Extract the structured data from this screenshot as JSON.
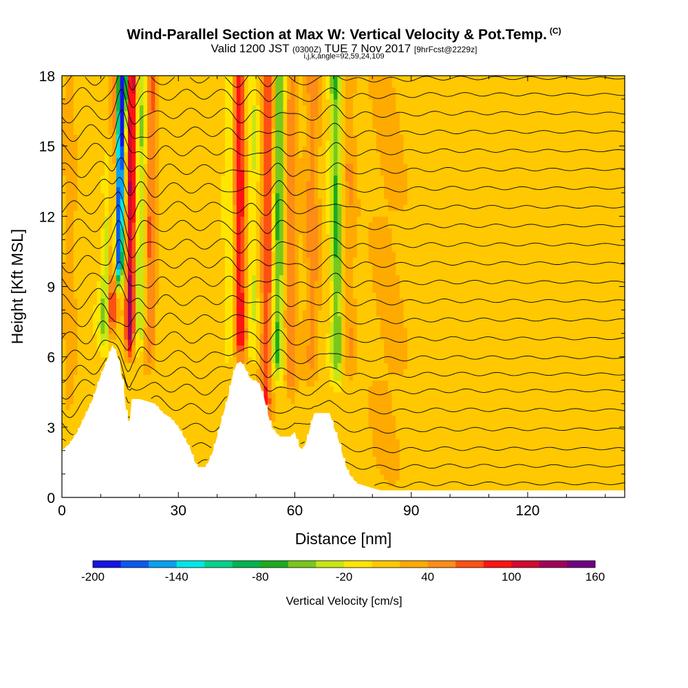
{
  "header": {
    "title": "Wind-Parallel Section at Max W: Vertical Velocity & Pot.Temp.",
    "title_tag": "(C)",
    "valid_prefix": "Valid 1200 JST",
    "valid_zulu": "(0300Z)",
    "valid_date": "TUE 7 Nov 2017",
    "forecast": "[9hrFcst@2229z]",
    "indices": "i,j,k,angle=92,59,24,109"
  },
  "chart_data": {
    "type": "heatmap",
    "xlabel": "Distance [nm]",
    "ylabel": "Height [Kft MSL]",
    "xlim": [
      0,
      145
    ],
    "ylim": [
      0,
      18
    ],
    "x_ticks": [
      "0",
      "30",
      "60",
      "90",
      "120"
    ],
    "x_tick_values": [
      0,
      30,
      60,
      90,
      120
    ],
    "x_minor_step": 10,
    "y_ticks": [
      "0",
      "3",
      "6",
      "9",
      "12",
      "15",
      "18"
    ],
    "y_tick_values": [
      0,
      3,
      6,
      9,
      12,
      15,
      18
    ],
    "y_minor_step": 1,
    "terrain_profile": {
      "x": [
        0,
        2,
        4,
        6,
        8,
        10,
        11,
        12,
        13,
        14,
        15,
        16,
        17,
        17.5,
        18,
        19,
        20,
        24,
        26,
        28,
        30,
        32,
        33,
        34,
        35,
        37,
        38,
        39,
        40,
        41,
        42,
        43,
        44,
        45,
        46,
        47,
        48,
        49,
        50,
        51,
        52,
        53,
        54,
        55,
        56,
        57,
        58,
        59,
        60,
        61,
        62,
        63,
        64,
        65,
        66,
        67,
        68,
        69,
        70,
        71,
        72,
        73,
        74,
        75,
        76,
        78,
        80,
        82,
        84,
        86,
        88,
        90,
        92,
        95,
        100,
        110,
        120,
        130,
        140,
        145
      ],
      "height": [
        2.0,
        2.3,
        2.8,
        3.5,
        4.2,
        5.2,
        5.6,
        6.0,
        6.5,
        6.2,
        5.6,
        4.5,
        3.0,
        3.3,
        4.2,
        4.2,
        4.2,
        4.0,
        3.6,
        3.4,
        3.0,
        2.4,
        2.1,
        1.6,
        1.3,
        1.3,
        1.6,
        2.0,
        2.6,
        3.2,
        3.8,
        4.4,
        5.2,
        5.7,
        5.8,
        5.6,
        5.2,
        5.0,
        5.0,
        4.8,
        4.3,
        3.6,
        3.0,
        2.8,
        2.6,
        2.6,
        2.6,
        2.6,
        2.8,
        2.2,
        2.0,
        2.4,
        3.0,
        3.6,
        3.6,
        3.6,
        3.6,
        3.6,
        3.0,
        2.6,
        2.0,
        1.4,
        1.0,
        0.8,
        0.6,
        0.5,
        0.4,
        0.3,
        0.3,
        0.3,
        0.3,
        0.3,
        0.3,
        0.3,
        0.3,
        0.3,
        0.3,
        0.3,
        0.3,
        0.3
      ]
    },
    "vertical_velocity_features": [
      {
        "x_base": 12.5,
        "z_base": 6.8,
        "slant": 0.15,
        "amp": 130,
        "width": 1.2
      },
      {
        "x_base": 11.0,
        "z_base": 6.5,
        "slant": 0.35,
        "amp": -90,
        "width": 1.6
      },
      {
        "x_base": 14.5,
        "z_base": 9.0,
        "slant": 0.1,
        "amp": -200,
        "width": 1.1
      },
      {
        "x_base": 17.5,
        "z_base": 6.0,
        "slant": 0.05,
        "amp": 120,
        "width": 1.2
      },
      {
        "x_base": 20.0,
        "z_base": 6.0,
        "slant": 0.05,
        "amp": -50,
        "width": 1.5
      },
      {
        "x_base": 22.5,
        "z_base": 5.5,
        "slant": 0.05,
        "amp": 55,
        "width": 1.6
      },
      {
        "x_base": 46.0,
        "z_base": 5.8,
        "slant": -0.05,
        "amp": 90,
        "width": 1.8
      },
      {
        "x_base": 43.5,
        "z_base": 6.0,
        "slant": 0.0,
        "amp": -40,
        "width": 1.5
      },
      {
        "x_base": 49.0,
        "z_base": 5.5,
        "slant": 0.0,
        "amp": -30,
        "width": 1.6
      },
      {
        "x_base": 52.5,
        "z_base": 3.0,
        "slant": 0.05,
        "amp": 70,
        "width": 1.6
      },
      {
        "x_base": 55.5,
        "z_base": 5.0,
        "slant": 0.05,
        "amp": -75,
        "width": 1.5
      },
      {
        "x_base": 59.0,
        "z_base": 4.0,
        "slant": 0.0,
        "amp": 45,
        "width": 1.8
      },
      {
        "x_base": 64.5,
        "z_base": 5.0,
        "slant": 0.0,
        "amp": 40,
        "width": 2.0
      },
      {
        "x_base": 71.0,
        "z_base": 5.0,
        "slant": -0.05,
        "amp": -70,
        "width": 1.5
      },
      {
        "x_base": 74.0,
        "z_base": 5.0,
        "slant": 0.0,
        "amp": 30,
        "width": 1.8
      },
      {
        "x_base": 84.0,
        "z_base": 0.5,
        "slant": 0.0,
        "amp": 18,
        "width": 5.0
      },
      {
        "x_base": 2.0,
        "z_base": 3.0,
        "slant": 0.0,
        "amp": 20,
        "width": 2.0
      }
    ],
    "isentropes": {
      "levels_kft": [
        0.8,
        1.5,
        2.2,
        3.0,
        3.8,
        4.6,
        5.3,
        6.0,
        6.8,
        7.6,
        8.4,
        9.2,
        10.0,
        10.8,
        11.6,
        12.4,
        13.2,
        14.0,
        14.8,
        15.6,
        16.4,
        17.2,
        17.9
      ]
    },
    "colorbar": {
      "label": "Vertical Velocity [cm/s]",
      "ticks": [
        "-200",
        "-140",
        "-80",
        "-20",
        "40",
        "100",
        "160"
      ],
      "tick_values": [
        -200,
        -140,
        -80,
        -20,
        40,
        100,
        160
      ],
      "min": -200,
      "max": 160,
      "colors": [
        "#1414e6",
        "#0a5af0",
        "#0aa0f0",
        "#00e6e6",
        "#00d28c",
        "#00b450",
        "#1eaa1e",
        "#78c81e",
        "#c8e614",
        "#ffe600",
        "#ffc800",
        "#ffaa00",
        "#ff8c14",
        "#ff5014",
        "#ff1414",
        "#d20a32",
        "#a0005a",
        "#6e0082"
      ]
    }
  }
}
